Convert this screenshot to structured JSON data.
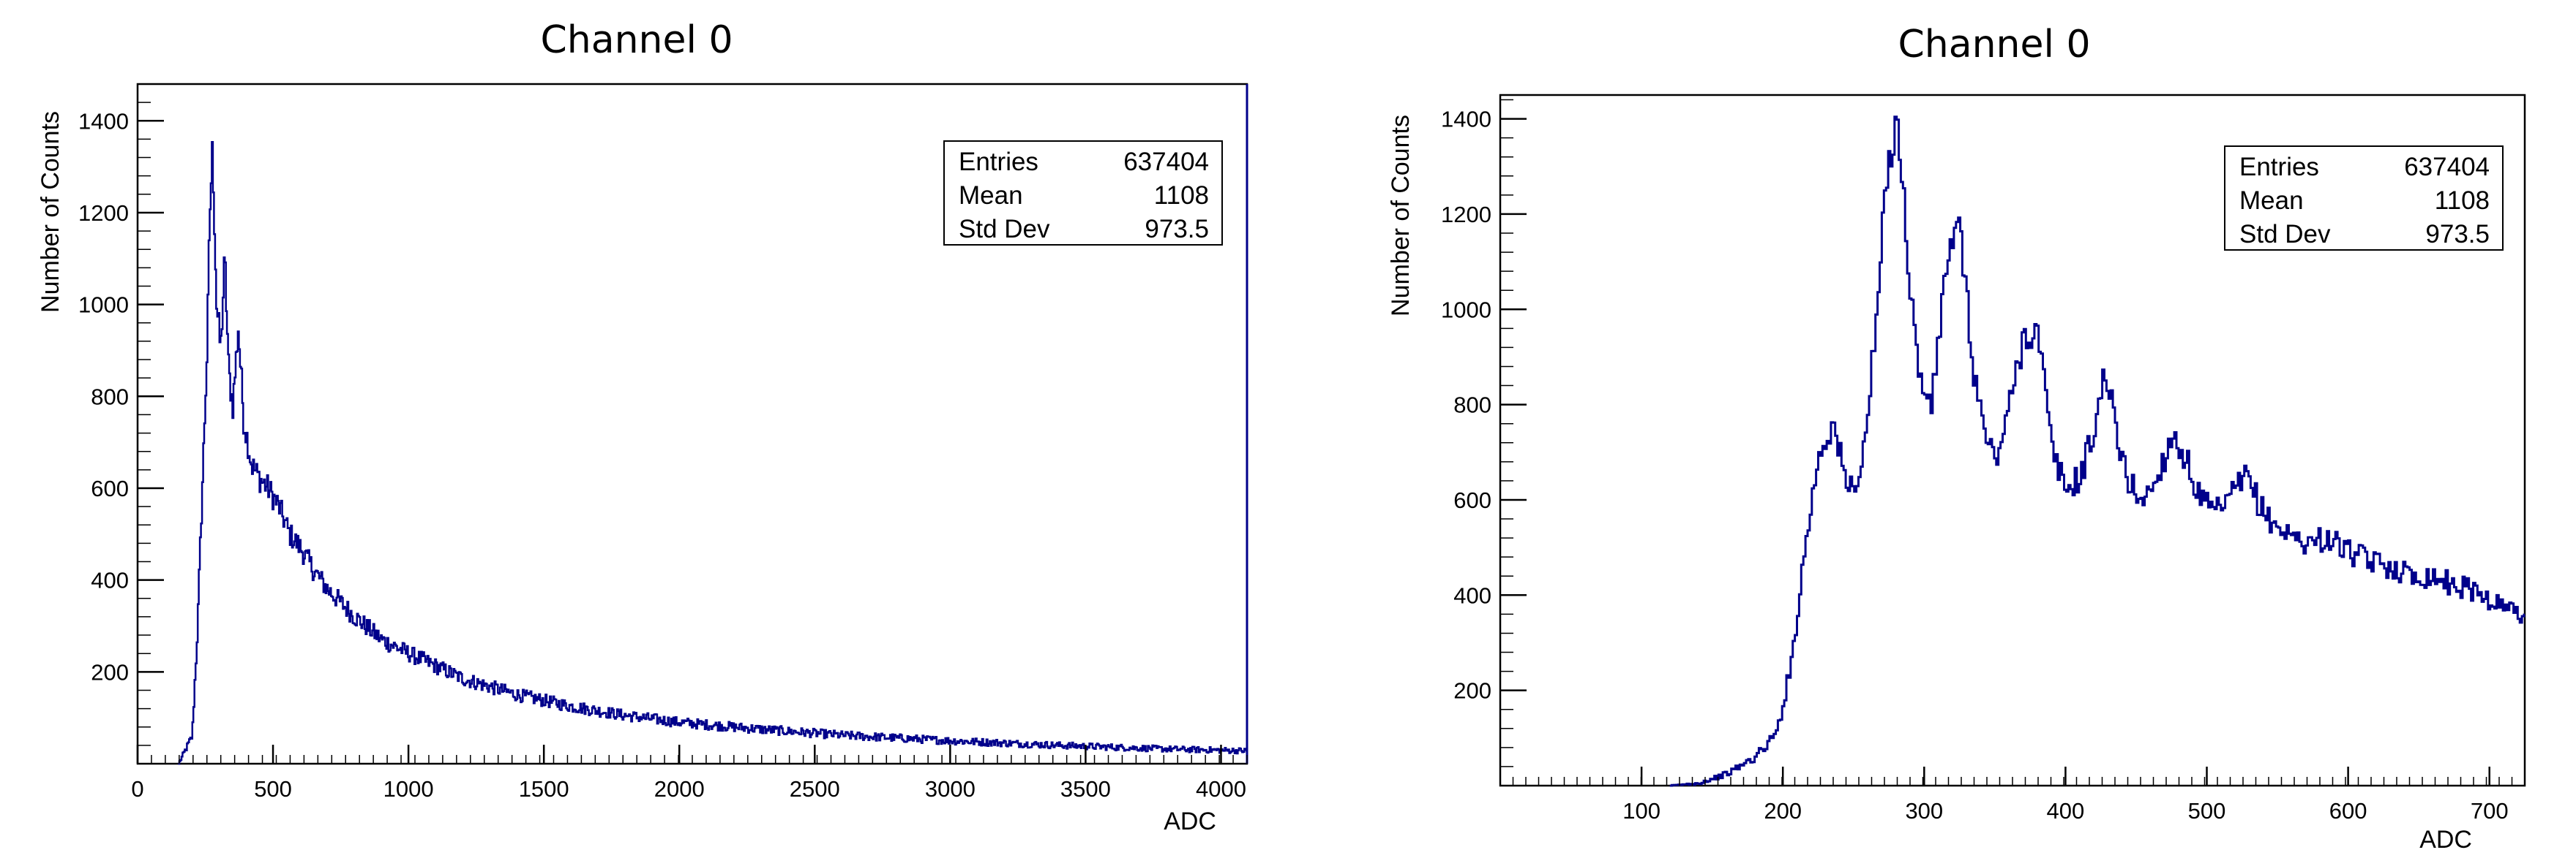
{
  "chart_data": [
    {
      "type": "histogram",
      "title": "Channel 0",
      "xlabel": "ADC",
      "ylabel": "Number of Counts",
      "xlim": [
        0,
        4096
      ],
      "ylim": [
        0,
        1480
      ],
      "x_ticks": [
        0,
        500,
        1000,
        1500,
        2000,
        2500,
        3000,
        3500,
        4000
      ],
      "y_ticks": [
        200,
        400,
        600,
        800,
        1000,
        1200,
        1400
      ],
      "line_color": "#00008b",
      "stats": {
        "rows": [
          {
            "label": "Entries",
            "value": "637404"
          },
          {
            "label": "Mean",
            "value": "1108"
          },
          {
            "label": "Std Dev",
            "value": "973.5"
          }
        ]
      },
      "series": [
        {
          "x": [
            150,
            200,
            220,
            240,
            255,
            265,
            275,
            290,
            305,
            320,
            335,
            350,
            370,
            390,
            420,
            450,
            480,
            520,
            560,
            600,
            650,
            700,
            800,
            900,
            1000,
            1200,
            1400,
            1600,
            1800,
            2000,
            2300,
            2600,
            3000,
            3400,
            3800,
            4096
          ],
          "values": [
            0,
            60,
            300,
            650,
            900,
            1200,
            1340,
            1000,
            900,
            1100,
            850,
            780,
            950,
            750,
            650,
            620,
            600,
            560,
            500,
            470,
            420,
            380,
            320,
            270,
            240,
            185,
            150,
            125,
            105,
            90,
            75,
            62,
            50,
            40,
            32,
            28
          ]
        }
      ]
    },
    {
      "type": "histogram",
      "title": "Channel 0",
      "xlabel": "ADC",
      "ylabel": "Number of Counts",
      "xlim": [
        0,
        725
      ],
      "ylim": [
        0,
        1450
      ],
      "x_ticks": [
        100,
        200,
        300,
        400,
        500,
        600,
        700
      ],
      "y_ticks": [
        200,
        400,
        600,
        800,
        1000,
        1200,
        1400
      ],
      "line_color": "#00008b",
      "stats": {
        "rows": [
          {
            "label": "Entries",
            "value": "637404"
          },
          {
            "label": "Mean",
            "value": "1108"
          },
          {
            "label": "Std Dev",
            "value": "973.5"
          }
        ]
      },
      "series": [
        {
          "x": [
            120,
            140,
            160,
            180,
            195,
            205,
            215,
            225,
            235,
            245,
            255,
            265,
            272,
            280,
            288,
            296,
            305,
            315,
            325,
            333,
            342,
            350,
            360,
            370,
            380,
            390,
            400,
            410,
            420,
            428,
            436,
            445,
            455,
            465,
            475,
            485,
            495,
            505,
            515,
            527,
            540,
            555,
            570,
            585,
            600,
            615,
            630,
            645,
            660,
            675,
            690,
            705,
            725
          ],
          "values": [
            0,
            5,
            25,
            60,
            110,
            250,
            500,
            700,
            760,
            620,
            660,
            950,
            1250,
            1420,
            1100,
            850,
            800,
            1100,
            1170,
            900,
            740,
            680,
            800,
            950,
            950,
            700,
            620,
            650,
            750,
            880,
            720,
            630,
            600,
            650,
            740,
            680,
            600,
            570,
            600,
            650,
            570,
            530,
            510,
            520,
            490,
            470,
            460,
            440,
            440,
            420,
            410,
            380,
            360
          ]
        }
      ]
    }
  ]
}
